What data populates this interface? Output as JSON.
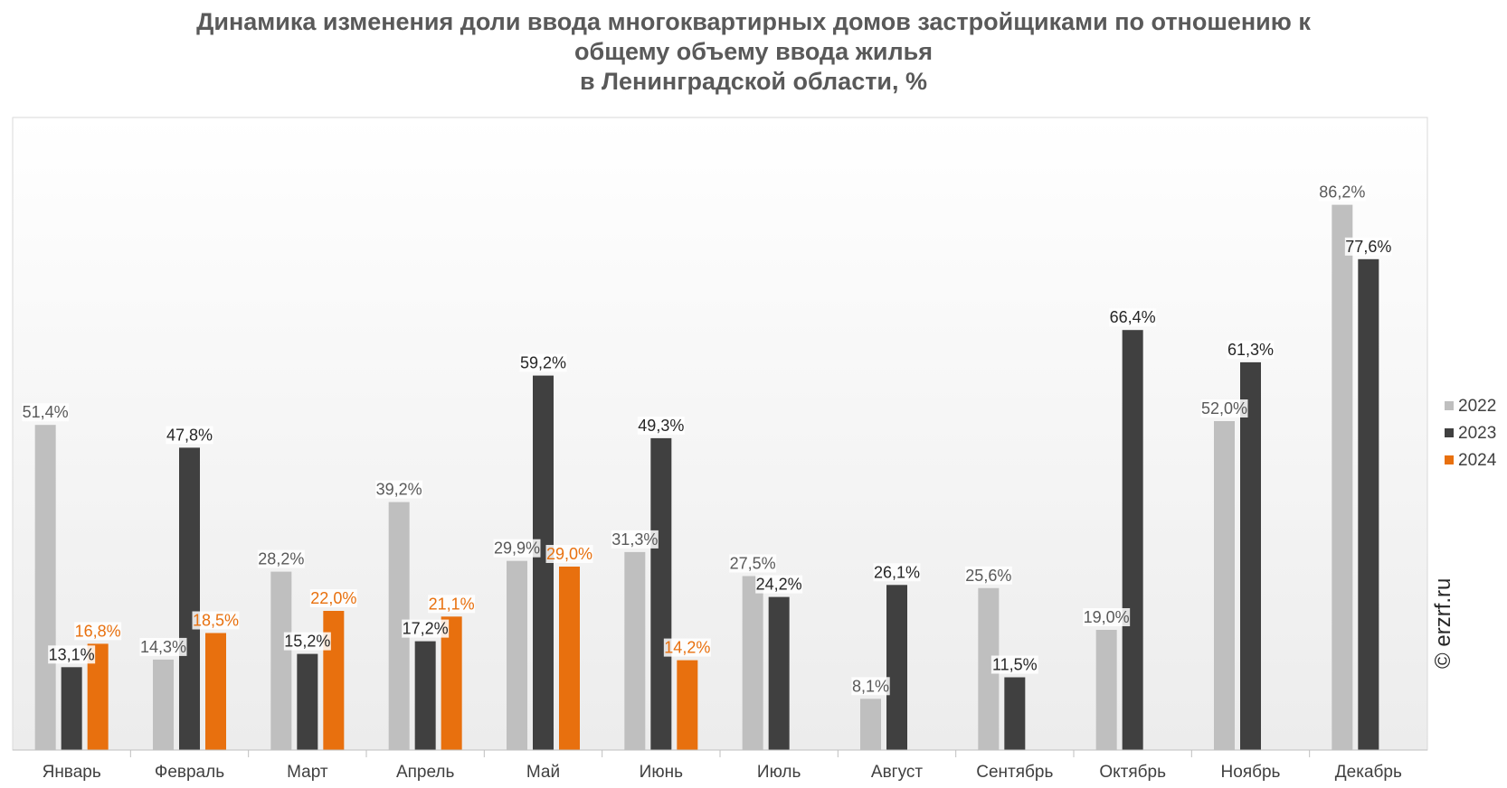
{
  "title": {
    "line1": "Динамика изменения доли ввода многоквартирных домов застройщиками по отношению к",
    "line2": "общему объему ввода жилья",
    "line3": "в Ленинградской области, %"
  },
  "watermark": "© erzrf.ru",
  "chart_data": {
    "type": "bar",
    "categories": [
      "Январь",
      "Февраль",
      "Март",
      "Апрель",
      "Май",
      "Июнь",
      "Июль",
      "Август",
      "Сентябрь",
      "Октябрь",
      "Ноябрь",
      "Декабрь"
    ],
    "series": [
      {
        "name": "2022",
        "color": "#bfbfbf",
        "label_color": "#595959",
        "values": [
          51.4,
          14.3,
          28.2,
          39.2,
          29.9,
          31.3,
          27.5,
          8.1,
          25.6,
          19.0,
          52.0,
          86.2
        ],
        "labels": [
          "51,4%",
          "14,3%",
          "28,2%",
          "39,2%",
          "29,9%",
          "31,3%",
          "27,5%",
          "8,1%",
          "25,6%",
          "19,0%",
          "52,0%",
          "86,2%"
        ]
      },
      {
        "name": "2023",
        "color": "#404040",
        "label_color": "#262626",
        "values": [
          13.1,
          47.8,
          15.2,
          17.2,
          59.2,
          49.3,
          24.2,
          26.1,
          11.5,
          66.4,
          61.3,
          77.6
        ],
        "labels": [
          "13,1%",
          "47,8%",
          "15,2%",
          "17,2%",
          "59,2%",
          "49,3%",
          "24,2%",
          "26,1%",
          "11,5%",
          "66,4%",
          "61,3%",
          "77,6%"
        ]
      },
      {
        "name": "2024",
        "color": "#e8700e",
        "label_color": "#e8700e",
        "values": [
          16.8,
          18.5,
          22.0,
          21.1,
          29.0,
          14.2,
          null,
          null,
          null,
          null,
          null,
          null
        ],
        "labels": [
          "16,8%",
          "18,5%",
          "22,0%",
          "21,1%",
          "29,0%",
          "14,2%",
          "",
          "",
          "",
          "",
          "",
          ""
        ]
      }
    ],
    "ylim": [
      0,
      100
    ],
    "legend": "right",
    "grid": false
  }
}
